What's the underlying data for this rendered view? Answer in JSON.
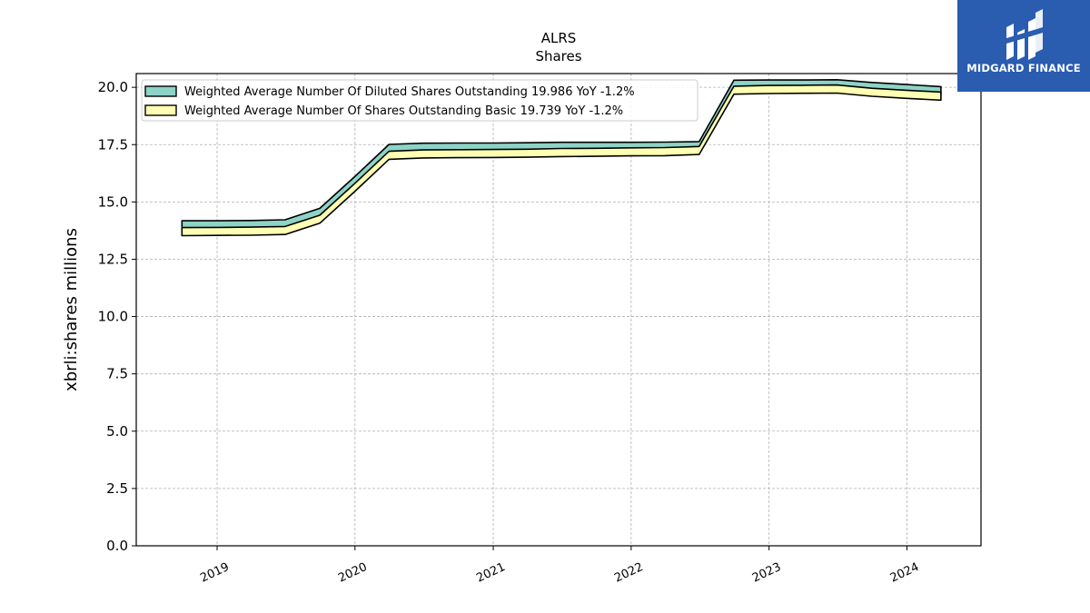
{
  "chart_data": {
    "type": "area",
    "title": "ALRS",
    "subtitle": "Shares",
    "xlabel": "",
    "ylabel": "xbrli:shares millions",
    "ylim": [
      0,
      20.6
    ],
    "yticks": [
      "0.0",
      "2.5",
      "5.0",
      "7.5",
      "10.0",
      "12.5",
      "15.0",
      "17.5",
      "20.0"
    ],
    "xticks": [
      "2019",
      "2020",
      "2021",
      "2022",
      "2023",
      "2024"
    ],
    "grid": true,
    "legend_position": "top-left",
    "x": [
      "2018-09-30",
      "2018-12-31",
      "2019-03-31",
      "2019-06-30",
      "2019-09-30",
      "2019-12-31",
      "2020-03-31",
      "2020-06-30",
      "2020-09-30",
      "2020-12-31",
      "2021-03-31",
      "2021-06-30",
      "2021-09-30",
      "2021-12-31",
      "2022-03-31",
      "2022-06-30",
      "2022-09-30",
      "2022-12-31",
      "2023-03-31",
      "2023-06-30",
      "2023-09-30",
      "2023-12-31",
      "2024-03-31"
    ],
    "series": [
      {
        "name": "Weighted Average Number Of Diluted Shares Outstanding  19.986 YoY -1.2%",
        "color": "#8dd3c7",
        "values": [
          14.18,
          14.18,
          14.19,
          14.22,
          14.72,
          16.1,
          17.51,
          17.56,
          17.57,
          17.57,
          17.58,
          17.6,
          17.6,
          17.6,
          17.61,
          17.63,
          20.31,
          20.32,
          20.32,
          20.33,
          20.21,
          20.12,
          20.03
        ]
      },
      {
        "name": "Weighted Average Number Of Shares Outstanding Basic  19.739 YoY -1.2%",
        "color": "#ffffb3",
        "values": [
          13.88,
          13.89,
          13.9,
          13.93,
          14.42,
          15.8,
          17.21,
          17.27,
          17.28,
          17.29,
          17.3,
          17.33,
          17.34,
          17.36,
          17.37,
          17.42,
          20.05,
          20.08,
          20.09,
          20.1,
          19.96,
          19.87,
          19.79
        ]
      }
    ]
  },
  "logo": {
    "text": "MIDGARD FINANCE",
    "background": "#2a5cb0"
  }
}
